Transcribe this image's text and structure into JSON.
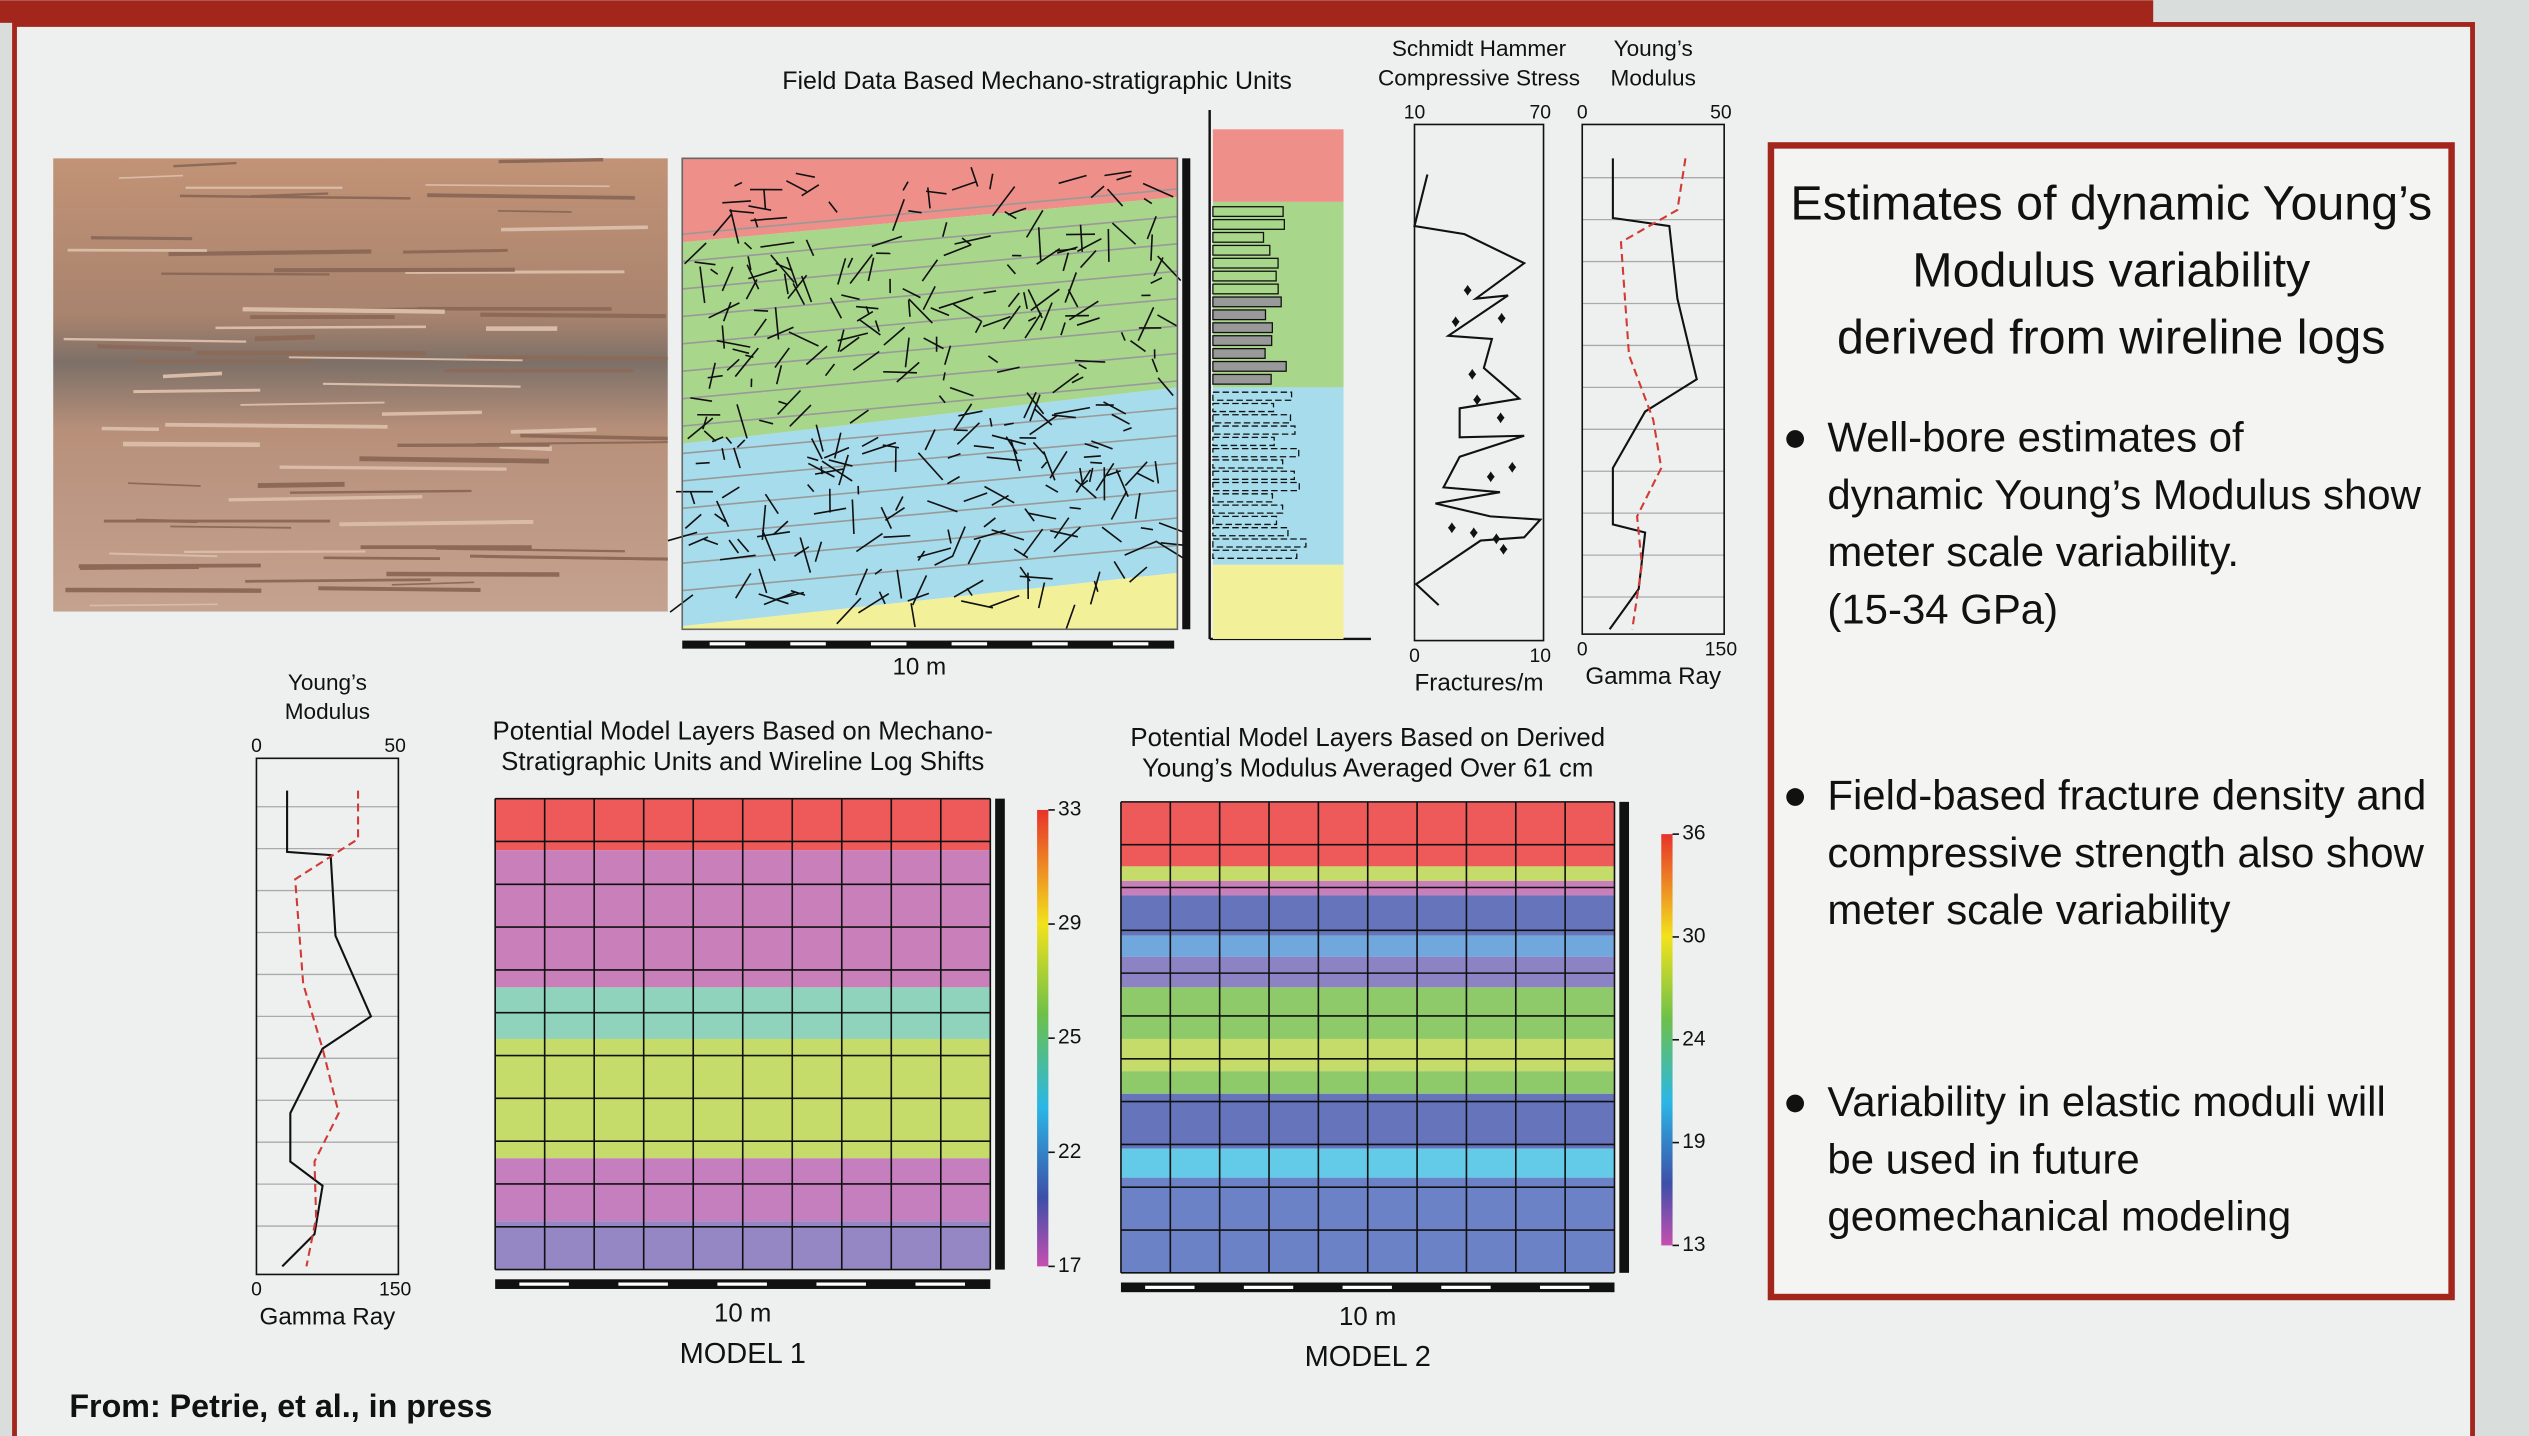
{
  "figure": {
    "title": "Field Data Based Mechano-stratigraphic Units",
    "scale_label": "10 m"
  },
  "stress_log": {
    "title_lines": [
      "Schmidt Hammer",
      "Compressive Stress"
    ],
    "top_ticks": [
      10,
      70
    ],
    "bottom_ticks": [
      0,
      10
    ],
    "xlabel": "Fractures/m"
  },
  "modulus_log": {
    "title_lines": [
      "Young’s",
      "Modulus"
    ],
    "top_ticks": [
      0,
      50
    ],
    "bottom_ticks": [
      0,
      150
    ],
    "xlabel": "Gamma Ray"
  },
  "modulus_log_small": {
    "title_lines": [
      "Young’s",
      "Modulus"
    ],
    "top_ticks": [
      0,
      50
    ],
    "bottom_ticks": [
      0,
      150
    ],
    "xlabel": "Gamma Ray"
  },
  "model_1": {
    "title_lines": [
      "Potential Model Layers Based on Mechano-",
      "Stratigraphic Units and Wireline Log Shifts"
    ],
    "colorbar_ticks": [
      33,
      29,
      25,
      22,
      17
    ],
    "scale_label": "10 m",
    "label": "MODEL 1"
  },
  "model_2": {
    "title_lines": [
      "Potential Model Layers Based on Derived",
      "Young’s Modulus Averaged Over 61 cm"
    ],
    "colorbar_ticks": [
      36,
      30,
      24,
      19,
      13
    ],
    "scale_label": "10 m",
    "label": "MODEL 2"
  },
  "source": "From: Petrie, et al., in press",
  "summary": {
    "title_lines": [
      "Estimates of dynamic Young’s",
      "Modulus variability",
      "derived from wireline logs"
    ],
    "bullets": [
      [
        "Well-bore estimates of",
        "dynamic Young’s Modulus show",
        "meter scale variability.",
        "(15-34 GPa)"
      ],
      [
        "Field-based fracture density and",
        "compressive strength also show",
        "meter scale variability"
      ],
      [
        "Variability in elastic moduli will",
        "be used in  future",
        "geomechanical modeling"
      ]
    ]
  }
}
